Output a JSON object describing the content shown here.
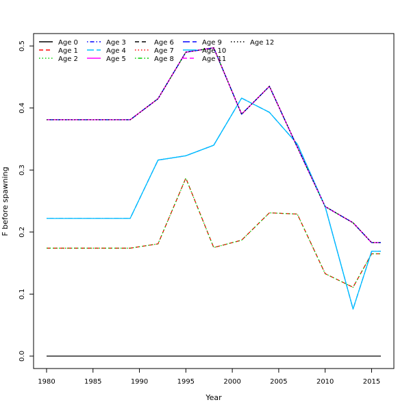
{
  "chart_data": {
    "type": "line",
    "xlabel": "Year",
    "ylabel": "F before spawning",
    "xlim": [
      1978.6,
      2017.4
    ],
    "ylim": [
      -0.02,
      0.52
    ],
    "x_ticks": [
      1980,
      1985,
      1990,
      1995,
      2000,
      2005,
      2010,
      2015
    ],
    "y_ticks": [
      0.0,
      0.1,
      0.2,
      0.3,
      0.4,
      0.5
    ],
    "x_tick_labels": [
      "1980",
      "1985",
      "1990",
      "1995",
      "2000",
      "2005",
      "2010",
      "2015"
    ],
    "y_tick_labels": [
      "0.0",
      "0.1",
      "0.2",
      "0.3",
      "0.4",
      "0.5"
    ],
    "grid": false,
    "legend_position": "top-left",
    "legend_columns": 6,
    "x": [
      1980,
      1989,
      1992,
      1995,
      1998,
      2001,
      2004,
      2007,
      2010,
      2013,
      2015,
      2016
    ],
    "series": [
      {
        "name": "Age 0",
        "color": "#000000",
        "dash": "solid",
        "values": [
          0,
          0,
          0,
          0,
          0,
          0,
          0,
          0,
          0,
          0,
          0,
          0
        ]
      },
      {
        "name": "Age 1",
        "color": "#ff0000",
        "dash": "dashed",
        "values": [
          0.174,
          0.174,
          0.181,
          0.287,
          0.175,
          0.187,
          0.231,
          0.229,
          0.133,
          0.111,
          0.165,
          0.165
        ]
      },
      {
        "name": "Age 2",
        "color": "#00cd00",
        "dash": "dotted",
        "values": [
          0.174,
          0.174,
          0.181,
          0.287,
          0.175,
          0.187,
          0.231,
          0.229,
          0.133,
          0.111,
          0.165,
          0.165
        ]
      },
      {
        "name": "Age 3",
        "color": "#0000ff",
        "dash": "dotdash",
        "values": [
          0.222,
          0.222,
          0.316,
          0.323,
          0.34,
          0.416,
          0.393,
          0.342,
          0.241,
          0.076,
          0.169,
          0.169
        ]
      },
      {
        "name": "Age 4",
        "color": "#00bfff",
        "dash": "longdash",
        "values": [
          0.222,
          0.222,
          0.316,
          0.323,
          0.34,
          0.416,
          0.393,
          0.342,
          0.241,
          0.076,
          0.169,
          0.169
        ]
      },
      {
        "name": "Age 5",
        "color": "#ff00ff",
        "dash": "solid",
        "values": [
          0.381,
          0.381,
          0.415,
          0.49,
          0.497,
          0.39,
          0.435,
          0.337,
          0.241,
          0.215,
          0.183,
          0.183
        ]
      },
      {
        "name": "Age 6",
        "color": "#000000",
        "dash": "dashed",
        "values": [
          0.381,
          0.381,
          0.415,
          0.49,
          0.497,
          0.39,
          0.435,
          0.337,
          0.241,
          0.215,
          0.183,
          0.183
        ]
      },
      {
        "name": "Age 7",
        "color": "#ff0000",
        "dash": "dotted",
        "values": [
          0.381,
          0.381,
          0.415,
          0.49,
          0.497,
          0.39,
          0.435,
          0.337,
          0.241,
          0.215,
          0.183,
          0.183
        ]
      },
      {
        "name": "Age 8",
        "color": "#00cd00",
        "dash": "dotdash",
        "values": [
          0.381,
          0.381,
          0.415,
          0.49,
          0.497,
          0.39,
          0.435,
          0.337,
          0.241,
          0.215,
          0.183,
          0.183
        ]
      },
      {
        "name": "Age 9",
        "color": "#0000ff",
        "dash": "longdash",
        "values": [
          0.381,
          0.381,
          0.415,
          0.49,
          0.497,
          0.39,
          0.435,
          0.337,
          0.241,
          0.215,
          0.183,
          0.183
        ]
      },
      {
        "name": "Age 10",
        "color": "#00bfff",
        "dash": "solid",
        "values": [
          0.222,
          0.222,
          0.316,
          0.323,
          0.34,
          0.416,
          0.393,
          0.342,
          0.241,
          0.076,
          0.169,
          0.169
        ]
      },
      {
        "name": "Age 11",
        "color": "#ff00ff",
        "dash": "dashed",
        "values": [
          0.381,
          0.381,
          0.415,
          0.49,
          0.497,
          0.39,
          0.435,
          0.337,
          0.241,
          0.215,
          0.183,
          0.183
        ]
      },
      {
        "name": "Age 12",
        "color": "#000000",
        "dash": "dotted",
        "values": [
          0.381,
          0.381,
          0.415,
          0.49,
          0.497,
          0.39,
          0.435,
          0.337,
          0.241,
          0.215,
          0.183,
          0.183
        ]
      }
    ]
  }
}
